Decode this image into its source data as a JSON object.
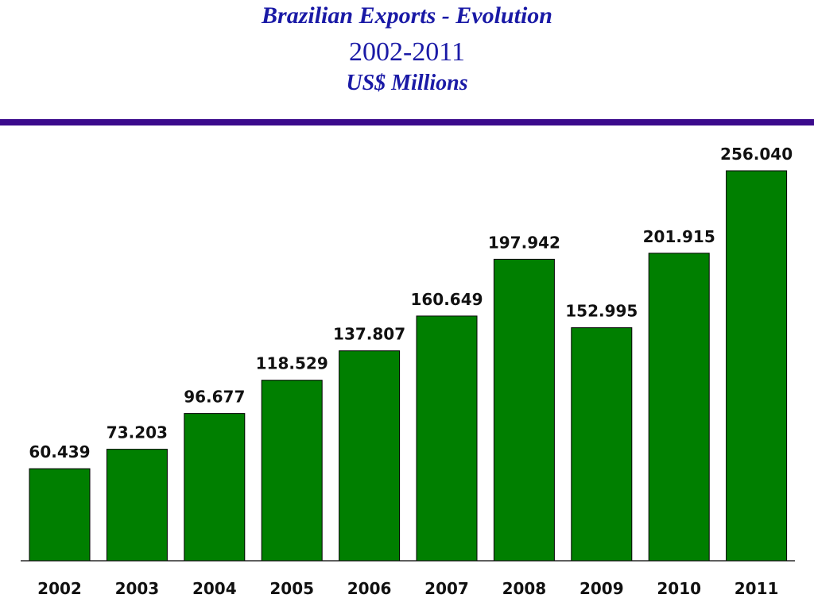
{
  "header": {
    "title": "Brazilian Exports - Evolution",
    "subtitle": "2002-2011",
    "unit": "US$ Millions"
  },
  "colors": {
    "title_text": "#1a1aa6",
    "rule": "#3b0a8c",
    "bar_fill": "#007f00"
  },
  "chart_data": {
    "type": "bar",
    "title": "Brazilian Exports - Evolution",
    "subtitle": "2002-2011",
    "ylabel": "",
    "xlabel": "",
    "categories": [
      "2002",
      "2003",
      "2004",
      "2005",
      "2006",
      "2007",
      "2008",
      "2009",
      "2010",
      "2011"
    ],
    "values": [
      60439,
      73203,
      96677,
      118529,
      137807,
      160649,
      197942,
      152995,
      201915,
      256040
    ],
    "value_labels": [
      "60.439",
      "73.203",
      "96.677",
      "118.529",
      "137.807",
      "160.649",
      "197.942",
      "152.995",
      "201.915",
      "256.040"
    ],
    "ylim": [
      0,
      256040
    ],
    "grid": false,
    "legend": "none",
    "data_labels": "above bars"
  }
}
